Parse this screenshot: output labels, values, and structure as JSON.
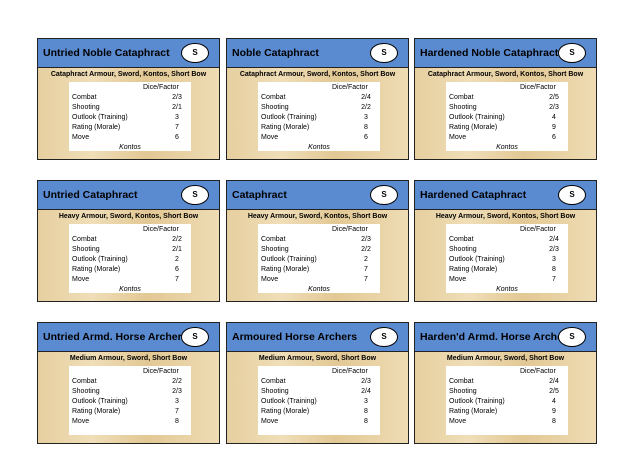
{
  "cards": [
    {
      "title": "Untried Noble Cataphract",
      "badge": "S",
      "equipment": "Cataphract Armour, Sword, Kontos, Short Bow",
      "column_header": "Dice/Factor",
      "rows": [
        [
          "Combat",
          "2/3"
        ],
        [
          "Shooting",
          "2/1"
        ],
        [
          "Outlook (Training)",
          "3"
        ],
        [
          "Rating (Morale)",
          "7"
        ],
        [
          "Move",
          "6"
        ]
      ],
      "special": "Kontos"
    },
    {
      "title": "Noble Cataphract",
      "badge": "S",
      "equipment": "Cataphract Armour, Sword, Kontos, Short Bow",
      "column_header": "Dice/Factor",
      "rows": [
        [
          "Combat",
          "2/4"
        ],
        [
          "Shooting",
          "2/2"
        ],
        [
          "Outlook (Training)",
          "3"
        ],
        [
          "Rating (Morale)",
          "8"
        ],
        [
          "Move",
          "6"
        ]
      ],
      "special": "Kontos"
    },
    {
      "title": "Hardened Noble Cataphract",
      "badge": "S",
      "equipment": "Cataphract Armour, Sword, Kontos, Short Bow",
      "column_header": "Dice/Factor",
      "rows": [
        [
          "Combat",
          "2/5"
        ],
        [
          "Shooting",
          "2/3"
        ],
        [
          "Outlook (Training)",
          "4"
        ],
        [
          "Rating (Morale)",
          "9"
        ],
        [
          "Move",
          "6"
        ]
      ],
      "special": "Kontos"
    },
    {
      "title": "Untried Cataphract",
      "badge": "S",
      "equipment": "Heavy Armour, Sword, Kontos, Short Bow",
      "column_header": "Dice/Factor",
      "rows": [
        [
          "Combat",
          "2/2"
        ],
        [
          "Shooting",
          "2/1"
        ],
        [
          "Outlook (Training)",
          "2"
        ],
        [
          "Rating (Morale)",
          "6"
        ],
        [
          "Move",
          "7"
        ]
      ],
      "special": "Kontos"
    },
    {
      "title": "Cataphract",
      "badge": "S",
      "equipment": "Heavy Armour, Sword, Kontos, Short Bow",
      "column_header": "Dice/Factor",
      "rows": [
        [
          "Combat",
          "2/3"
        ],
        [
          "Shooting",
          "2/2"
        ],
        [
          "Outlook (Training)",
          "2"
        ],
        [
          "Rating (Morale)",
          "7"
        ],
        [
          "Move",
          "7"
        ]
      ],
      "special": "Kontos"
    },
    {
      "title": "Hardened Cataphract",
      "badge": "S",
      "equipment": "Heavy Armour, Sword, Kontos, Short Bow",
      "column_header": "Dice/Factor",
      "rows": [
        [
          "Combat",
          "2/4"
        ],
        [
          "Shooting",
          "2/3"
        ],
        [
          "Outlook (Training)",
          "3"
        ],
        [
          "Rating (Morale)",
          "8"
        ],
        [
          "Move",
          "7"
        ]
      ],
      "special": "Kontos"
    },
    {
      "title": "Untried Armd. Horse Archers",
      "badge": "S",
      "equipment": "Medium Armour, Sword, Short Bow",
      "column_header": "Dice/Factor",
      "rows": [
        [
          "Combat",
          "2/2"
        ],
        [
          "Shooting",
          "2/3"
        ],
        [
          "Outlook (Training)",
          "3"
        ],
        [
          "Rating (Morale)",
          "7"
        ],
        [
          "Move",
          "8"
        ]
      ]
    },
    {
      "title": "Armoured Horse Archers",
      "badge": "S",
      "equipment": "Medium Armour, Sword, Short Bow",
      "column_header": "Dice/Factor",
      "rows": [
        [
          "Combat",
          "2/3"
        ],
        [
          "Shooting",
          "2/4"
        ],
        [
          "Outlook (Training)",
          "3"
        ],
        [
          "Rating (Morale)",
          "8"
        ],
        [
          "Move",
          "8"
        ]
      ]
    },
    {
      "title": "Harden'd Armd. Horse Archers",
      "badge": "S",
      "equipment": "Medium Armour, Sword, Short Bow",
      "column_header": "Dice/Factor",
      "rows": [
        [
          "Combat",
          "2/4"
        ],
        [
          "Shooting",
          "2/5"
        ],
        [
          "Outlook (Training)",
          "4"
        ],
        [
          "Rating (Morale)",
          "9"
        ],
        [
          "Move",
          "8"
        ]
      ]
    }
  ]
}
